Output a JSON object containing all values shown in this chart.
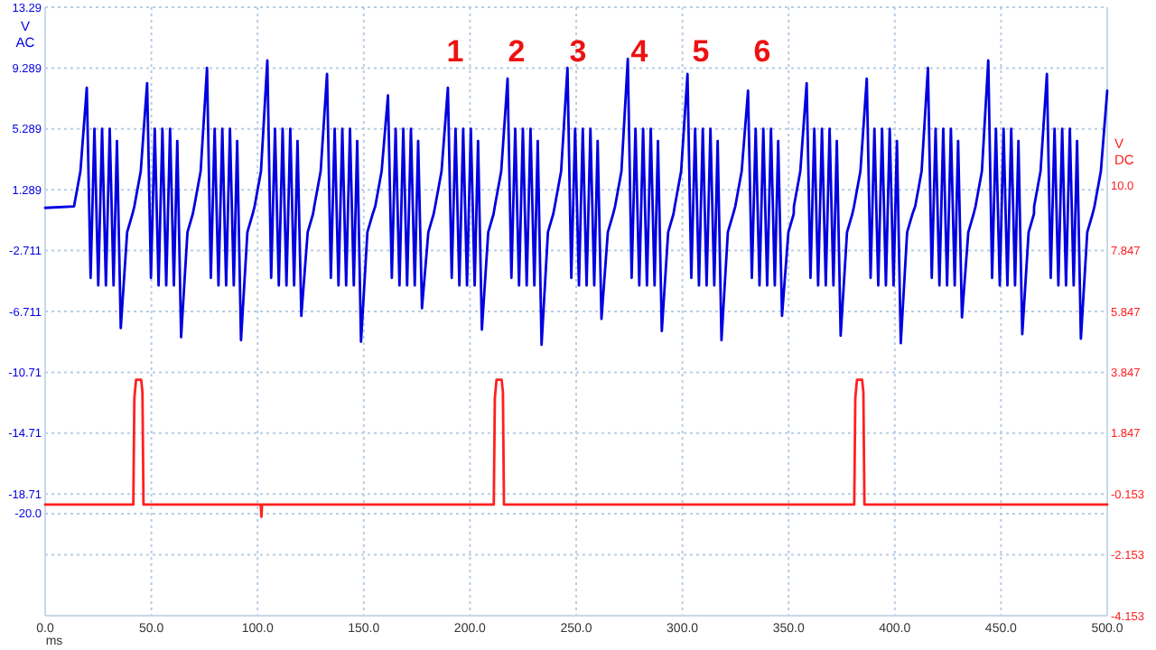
{
  "chart_data": {
    "type": "line",
    "xlabel": "ms",
    "ylabel": "V AC",
    "y2label": "V DC",
    "xlim": [
      0,
      500
    ],
    "xticks": [
      {
        "value": 0,
        "label": "0.0"
      },
      {
        "value": 50,
        "label": "50.0"
      },
      {
        "value": 100,
        "label": "100.0"
      },
      {
        "value": 150,
        "label": "150.0"
      },
      {
        "value": 200,
        "label": "200.0"
      },
      {
        "value": 250,
        "label": "250.0"
      },
      {
        "value": 300,
        "label": "300.0"
      },
      {
        "value": 350,
        "label": "350.0"
      },
      {
        "value": 400,
        "label": "400.0"
      },
      {
        "value": 450,
        "label": "450.0"
      },
      {
        "value": 500,
        "label": "500.0"
      }
    ],
    "ylim": [
      -26.71,
      13.29
    ],
    "yticks": [
      13.29,
      9.289,
      5.289,
      1.289,
      -2.711,
      -6.711,
      -10.71,
      -14.71,
      -18.71,
      {
        "value": -20,
        "label": "-20.0"
      },
      {
        "value": -22.71,
        "label": null
      },
      {
        "value": -26.71,
        "label": null
      }
    ],
    "y2lim": [
      -4.153,
      15.847
    ],
    "y2ticks": [
      {
        "value": 10,
        "label": "10.0"
      },
      7.847,
      5.847,
      3.847,
      1.847,
      -0.153,
      -2.153,
      -4.153
    ],
    "grid": true,
    "marker": "none",
    "line_style": "solid",
    "series": [
      {
        "color": "#0000e0",
        "x": [
          0,
          13.6,
          16.6,
          19.6,
          21.4,
          23.2,
          25.0,
          26.8,
          28.6,
          30.4,
          32.2,
          33.8,
          35.6,
          38.6,
          41.1,
          42.0,
          45.0,
          48.0,
          49.8,
          51.6,
          53.4,
          55.2,
          57.0,
          58.8,
          60.6,
          62.2,
          64.0,
          67.0,
          69.5,
          70.2,
          73.2,
          76.2,
          78.0,
          79.8,
          81.6,
          83.4,
          85.2,
          87.0,
          88.8,
          90.4,
          92.2,
          95.2,
          97.7,
          98.6,
          101.6,
          104.6,
          106.4,
          108.2,
          110.0,
          111.8,
          113.6,
          115.4,
          117.2,
          118.8,
          120.6,
          123.6,
          126.1,
          126.7,
          129.7,
          132.7,
          134.5,
          136.3,
          138.1,
          139.9,
          141.7,
          143.5,
          145.3,
          146.9,
          148.7,
          151.7,
          154.2,
          155.4,
          158.4,
          161.4,
          163.2,
          165.0,
          166.8,
          168.6,
          170.4,
          172.2,
          174.0,
          175.6,
          177.4,
          180.4,
          182.9,
          183.6,
          186.6,
          189.6,
          191.4,
          193.2,
          195.0,
          196.8,
          198.6,
          200.4,
          202.2,
          203.8,
          205.6,
          208.6,
          211.1,
          211.7,
          214.7,
          217.7,
          219.5,
          221.3,
          223.1,
          224.9,
          226.7,
          228.5,
          230.3,
          231.9,
          233.7,
          236.7,
          239.2,
          239.9,
          242.9,
          245.9,
          247.7,
          249.5,
          251.3,
          253.1,
          254.9,
          256.7,
          258.5,
          260.1,
          261.9,
          264.9,
          267.4,
          268.3,
          271.3,
          274.3,
          276.1,
          277.9,
          279.7,
          281.5,
          283.3,
          285.1,
          286.9,
          288.5,
          290.3,
          293.3,
          295.8,
          296.4,
          299.4,
          302.4,
          304.2,
          306.0,
          307.8,
          309.6,
          311.4,
          313.2,
          315.0,
          316.6,
          318.4,
          321.4,
          323.9,
          324.9,
          327.9,
          330.9,
          332.7,
          334.5,
          336.3,
          338.1,
          339.9,
          341.7,
          343.5,
          345.1,
          346.9,
          349.9,
          352.4,
          352.5,
          355.5,
          358.5,
          360.3,
          362.1,
          363.9,
          365.7,
          367.5,
          369.3,
          371.1,
          372.7,
          374.5,
          377.5,
          380.0,
          380.8,
          383.8,
          386.8,
          388.6,
          390.4,
          392.2,
          394.0,
          395.8,
          397.6,
          399.4,
          401.0,
          402.8,
          405.8,
          408.3,
          409.6,
          412.6,
          415.6,
          417.4,
          419.2,
          421.0,
          422.8,
          424.6,
          426.4,
          428.2,
          429.8,
          431.6,
          434.6,
          437.1,
          438.0,
          441.0,
          444.0,
          445.8,
          447.6,
          449.4,
          451.2,
          453.0,
          454.8,
          456.6,
          458.2,
          460.0,
          463.0,
          465.5,
          465.6,
          468.6,
          471.6,
          473.4,
          475.2,
          477.0,
          478.8,
          480.6,
          482.4,
          484.2,
          485.8,
          487.6,
          490.6,
          493.1,
          494.0,
          497.0,
          500
        ],
        "values": [
          0.1,
          0.2,
          2.5,
          8.0,
          -4.5,
          5.3,
          -5,
          5.3,
          -5,
          5.3,
          -5,
          4.5,
          -7.8,
          -1.5,
          -0.3,
          0.2,
          2.5,
          8.3,
          -4.5,
          5.3,
          -5,
          5.3,
          -5,
          5.3,
          -5,
          4.5,
          -8.4,
          -1.5,
          -0.3,
          0.2,
          2.5,
          9.3,
          -4.5,
          5.3,
          -5,
          5.3,
          -5,
          5.3,
          -5,
          4.5,
          -8.6,
          -1.5,
          -0.3,
          0.2,
          2.5,
          9.8,
          -4.5,
          5.3,
          -5,
          5.3,
          -5,
          5.3,
          -5,
          4.5,
          -7.0,
          -1.5,
          -0.3,
          0.2,
          2.5,
          8.9,
          -4.5,
          5.3,
          -5,
          5.3,
          -5,
          5.3,
          -5,
          4.5,
          -8.7,
          -1.5,
          -0.3,
          0.2,
          2.5,
          7.5,
          -4.5,
          5.3,
          -5,
          5.3,
          -5,
          5.3,
          -5,
          4.5,
          -6.5,
          -1.5,
          -0.3,
          0.2,
          2.5,
          8.0,
          -4.5,
          5.3,
          -5,
          5.3,
          -5,
          5.3,
          -5,
          4.5,
          -7.9,
          -1.5,
          -0.3,
          0.2,
          2.5,
          8.6,
          -4.5,
          5.3,
          -5,
          5.3,
          -5,
          5.3,
          -5,
          4.5,
          -8.9,
          -1.5,
          -0.3,
          0.2,
          2.5,
          9.3,
          -4.5,
          5.3,
          -5,
          5.3,
          -5,
          5.3,
          -5,
          4.5,
          -7.2,
          -1.5,
          -0.3,
          0.2,
          2.5,
          9.9,
          -4.5,
          5.3,
          -5,
          5.3,
          -5,
          5.3,
          -5,
          4.5,
          -8.0,
          -1.5,
          -0.3,
          0.2,
          2.5,
          8.9,
          -4.5,
          5.3,
          -5,
          5.3,
          -5,
          5.3,
          -5,
          4.5,
          -8.6,
          -1.5,
          -0.3,
          0.2,
          2.5,
          7.8,
          -4.5,
          5.3,
          -5,
          5.3,
          -5,
          5.3,
          -5,
          4.5,
          -7.0,
          -1.5,
          -0.3,
          0.2,
          2.5,
          8.3,
          -4.5,
          5.3,
          -5,
          5.3,
          -5,
          5.3,
          -5,
          4.5,
          -8.3,
          -1.5,
          -0.3,
          0.2,
          2.5,
          8.6,
          -4.5,
          5.3,
          -5,
          5.3,
          -5,
          5.3,
          -5,
          4.5,
          -8.8,
          -1.5,
          -0.3,
          0.2,
          2.5,
          9.3,
          -4.5,
          5.3,
          -5,
          5.3,
          -5,
          5.3,
          -5,
          4.5,
          -7.1,
          -1.5,
          -0.3,
          0.2,
          2.5,
          9.8,
          -4.5,
          5.3,
          -5,
          5.3,
          -5,
          5.3,
          -5,
          4.5,
          -8.2,
          -1.5,
          -0.3,
          0.2,
          2.5,
          8.9,
          -4.5,
          5.3,
          -5,
          5.3,
          -5,
          5.3,
          -5,
          4.5,
          -8.5,
          -1.5,
          -0.3,
          0.2,
          2.5,
          7.8
        ]
      },
      {
        "color": "#ff2020",
        "axis": "y2",
        "x": [
          0,
          41.5,
          42.0,
          42.8,
          45.2,
          45.8,
          46.3,
          101.5,
          101.8,
          102.1,
          211.2,
          211.7,
          212.5,
          214.9,
          215.5,
          216.0,
          380.9,
          381.4,
          382.2,
          384.6,
          385.2,
          385.7,
          500
        ],
        "values": [
          -0.5,
          -0.5,
          3.0,
          3.6,
          3.6,
          3.2,
          -0.5,
          -0.5,
          -0.9,
          -0.5,
          -0.5,
          3.0,
          3.6,
          3.6,
          3.2,
          -0.5,
          -0.5,
          3.0,
          3.6,
          3.6,
          3.2,
          -0.5,
          -0.5
        ]
      }
    ],
    "annotations": [
      "1",
      "2",
      "3",
      "4",
      "5",
      "6"
    ]
  }
}
